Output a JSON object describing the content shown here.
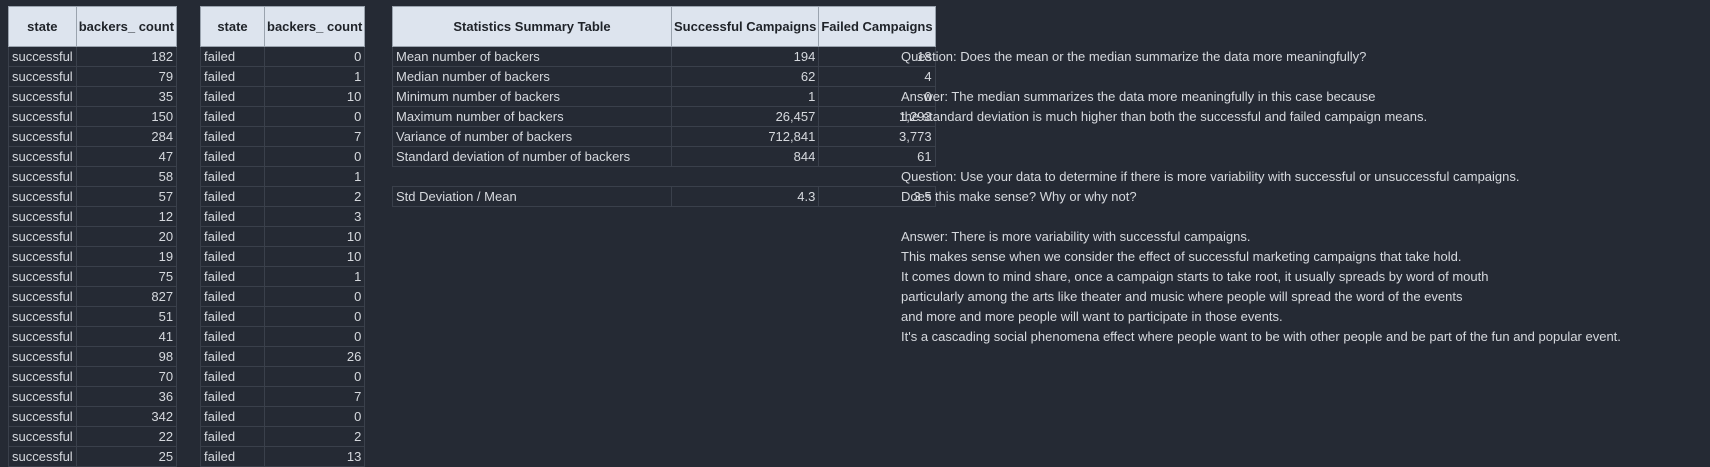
{
  "success_table": {
    "headers": [
      "state",
      "backers_ count"
    ],
    "rows": [
      [
        "successful",
        "182"
      ],
      [
        "successful",
        "79"
      ],
      [
        "successful",
        "35"
      ],
      [
        "successful",
        "150"
      ],
      [
        "successful",
        "284"
      ],
      [
        "successful",
        "47"
      ],
      [
        "successful",
        "58"
      ],
      [
        "successful",
        "57"
      ],
      [
        "successful",
        "12"
      ],
      [
        "successful",
        "20"
      ],
      [
        "successful",
        "19"
      ],
      [
        "successful",
        "75"
      ],
      [
        "successful",
        "827"
      ],
      [
        "successful",
        "51"
      ],
      [
        "successful",
        "41"
      ],
      [
        "successful",
        "98"
      ],
      [
        "successful",
        "70"
      ],
      [
        "successful",
        "36"
      ],
      [
        "successful",
        "342"
      ],
      [
        "successful",
        "22"
      ],
      [
        "successful",
        "25"
      ]
    ]
  },
  "failed_table": {
    "headers": [
      "state",
      "backers_ count"
    ],
    "rows": [
      [
        "failed",
        "0"
      ],
      [
        "failed",
        "1"
      ],
      [
        "failed",
        "10"
      ],
      [
        "failed",
        "0"
      ],
      [
        "failed",
        "7"
      ],
      [
        "failed",
        "0"
      ],
      [
        "failed",
        "1"
      ],
      [
        "failed",
        "2"
      ],
      [
        "failed",
        "3"
      ],
      [
        "failed",
        "10"
      ],
      [
        "failed",
        "10"
      ],
      [
        "failed",
        "1"
      ],
      [
        "failed",
        "0"
      ],
      [
        "failed",
        "0"
      ],
      [
        "failed",
        "0"
      ],
      [
        "failed",
        "26"
      ],
      [
        "failed",
        "0"
      ],
      [
        "failed",
        "7"
      ],
      [
        "failed",
        "0"
      ],
      [
        "failed",
        "2"
      ],
      [
        "failed",
        "13"
      ]
    ]
  },
  "stats_table": {
    "headers": [
      "Statistics Summary Table",
      "Successful Campaigns",
      "Failed Campaigns"
    ],
    "rows": [
      [
        "Mean number of backers",
        "194",
        "18"
      ],
      [
        "Median number of backers",
        "62",
        "4"
      ],
      [
        "Minimum number of backers",
        "1",
        "0"
      ],
      [
        "Maximum number of backers",
        "26,457",
        "1,293"
      ],
      [
        "Variance of number of backers",
        "712,841",
        "3,773"
      ],
      [
        "Standard deviation of number of backers",
        "844",
        "61"
      ],
      [
        "",
        "",
        ""
      ],
      [
        "Std Deviation / Mean",
        "4.3",
        "3.5"
      ]
    ]
  },
  "qa_lines": [
    "Question: Does the mean or the median summarize the data more meaningfully?",
    "",
    "Answer: The median summarizes the data more meaningfully in this case because",
    "the standard deviation is much higher than both the successful and failed campaign means.",
    "",
    "",
    "Question: Use your data to determine if there is more variability with successful or unsuccessful campaigns.",
    "Does this make sense?  Why or why not?",
    "",
    "Answer:  There is more variability with successful campaigns.",
    "This makes sense when we consider the effect of successful marketing campaigns that take hold.",
    "It comes down to mind share, once a campaign starts to take root, it usually spreads by word of mouth",
    "particularly among the arts like theater and music where people will spread the word of the events",
    "and more and more people will want to participate in those events.",
    "It's a cascading social phenomena effect where people want to be with other people and be part of the fun and popular event."
  ]
}
